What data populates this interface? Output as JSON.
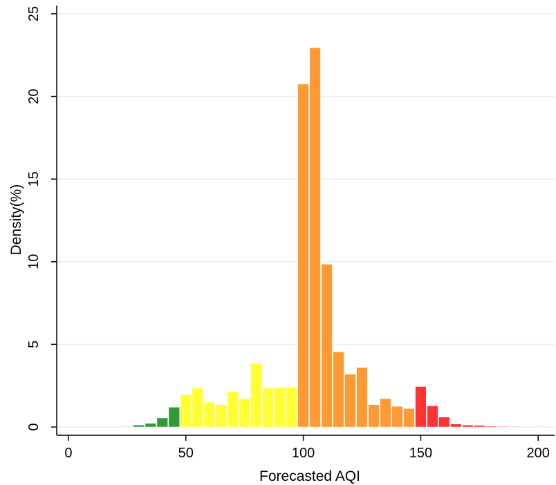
{
  "chart_data": {
    "type": "bar",
    "xlabel": "Forecasted AQI",
    "ylabel": "Density(%)",
    "xlim": [
      -5,
      207
    ],
    "ylim": [
      -0.5,
      25.5
    ],
    "xticks": [
      0,
      50,
      100,
      150,
      200
    ],
    "yticks": [
      0,
      5,
      10,
      15,
      20,
      25
    ],
    "grid": "horizontal",
    "bin_width": 5,
    "colors": {
      "green": "#339933",
      "yellow": "#ffff33",
      "orange": "#ff9933",
      "red": "#ff3333",
      "grid": "#e8eef2",
      "axis": "#000000"
    },
    "bins": [
      {
        "x": 25,
        "value": 0.03,
        "color": "green"
      },
      {
        "x": 30,
        "value": 0.12,
        "color": "green"
      },
      {
        "x": 35,
        "value": 0.22,
        "color": "green"
      },
      {
        "x": 40,
        "value": 0.55,
        "color": "green"
      },
      {
        "x": 45,
        "value": 1.2,
        "color": "green"
      },
      {
        "x": 50,
        "value": 1.95,
        "color": "yellow"
      },
      {
        "x": 55,
        "value": 2.35,
        "color": "yellow"
      },
      {
        "x": 60,
        "value": 1.5,
        "color": "yellow"
      },
      {
        "x": 65,
        "value": 1.35,
        "color": "yellow"
      },
      {
        "x": 70,
        "value": 2.15,
        "color": "yellow"
      },
      {
        "x": 75,
        "value": 1.72,
        "color": "yellow"
      },
      {
        "x": 80,
        "value": 3.85,
        "color": "yellow"
      },
      {
        "x": 85,
        "value": 2.35,
        "color": "yellow"
      },
      {
        "x": 90,
        "value": 2.4,
        "color": "yellow"
      },
      {
        "x": 95,
        "value": 2.4,
        "color": "yellow"
      },
      {
        "x": 100,
        "value": 20.75,
        "color": "orange"
      },
      {
        "x": 105,
        "value": 22.95,
        "color": "orange"
      },
      {
        "x": 110,
        "value": 9.85,
        "color": "orange"
      },
      {
        "x": 115,
        "value": 4.55,
        "color": "orange"
      },
      {
        "x": 120,
        "value": 3.2,
        "color": "orange"
      },
      {
        "x": 125,
        "value": 3.6,
        "color": "orange"
      },
      {
        "x": 130,
        "value": 1.35,
        "color": "orange"
      },
      {
        "x": 135,
        "value": 1.72,
        "color": "orange"
      },
      {
        "x": 140,
        "value": 1.25,
        "color": "orange"
      },
      {
        "x": 145,
        "value": 1.12,
        "color": "orange"
      },
      {
        "x": 150,
        "value": 2.45,
        "color": "red"
      },
      {
        "x": 155,
        "value": 1.28,
        "color": "red"
      },
      {
        "x": 160,
        "value": 0.6,
        "color": "red"
      },
      {
        "x": 165,
        "value": 0.18,
        "color": "red"
      },
      {
        "x": 170,
        "value": 0.12,
        "color": "red"
      },
      {
        "x": 175,
        "value": 0.1,
        "color": "red"
      },
      {
        "x": 180,
        "value": 0.05,
        "color": "red"
      },
      {
        "x": 185,
        "value": 0.04,
        "color": "red"
      },
      {
        "x": 190,
        "value": 0.03,
        "color": "red"
      },
      {
        "x": 200,
        "value": 0.02,
        "color": "red"
      }
    ]
  }
}
